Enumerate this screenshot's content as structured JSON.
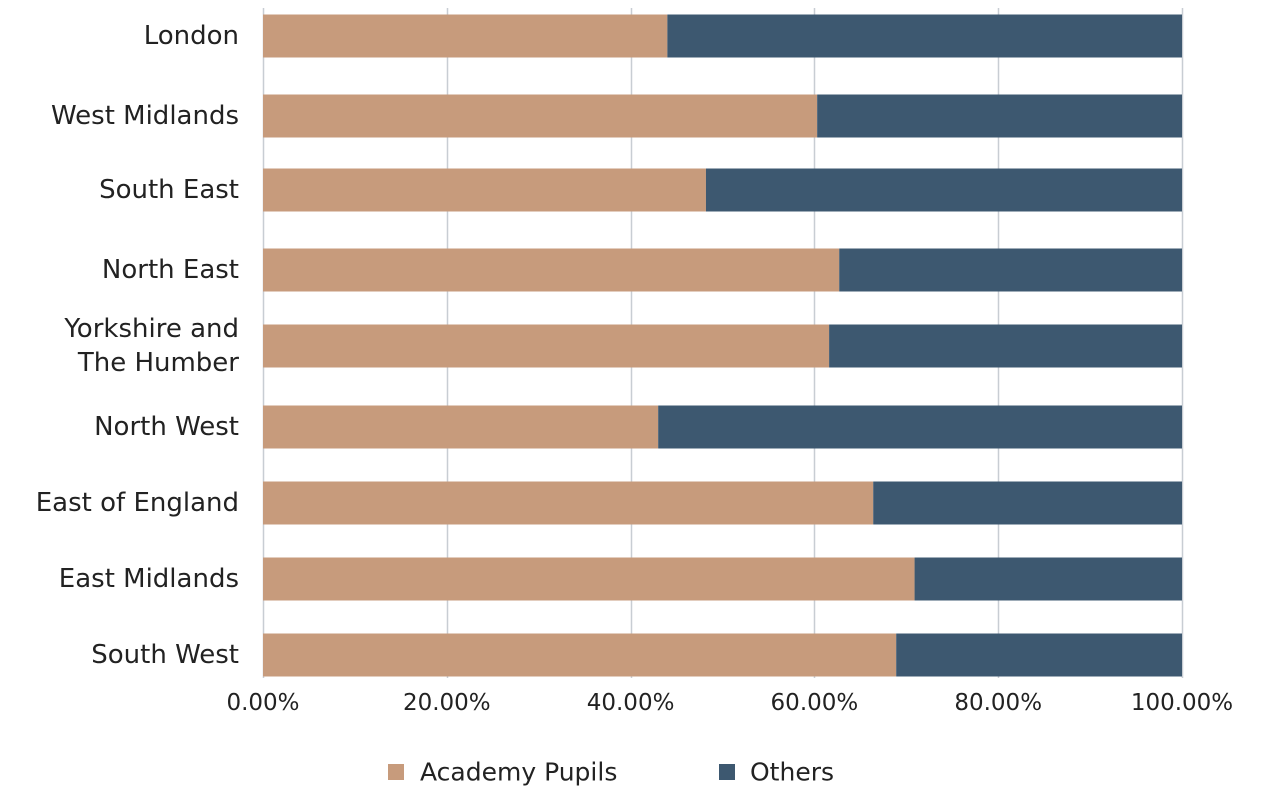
{
  "chart_data": {
    "type": "bar",
    "orientation": "horizontal",
    "stacked": true,
    "categories": [
      [
        "London"
      ],
      [
        "West Midlands"
      ],
      [
        "South East"
      ],
      [
        "North East"
      ],
      [
        "Yorkshire and",
        "The Humber"
      ],
      [
        "North West"
      ],
      [
        "East of England"
      ],
      [
        "East Midlands"
      ],
      [
        "South West"
      ]
    ],
    "series": [
      {
        "name": "Academy Pupils",
        "color": "#c79b7c",
        "values": [
          0.44,
          0.603,
          0.482,
          0.627,
          0.616,
          0.43,
          0.664,
          0.709,
          0.689
        ]
      },
      {
        "name": "Others",
        "color": "#3d5870",
        "values": [
          0.56,
          0.397,
          0.518,
          0.373,
          0.384,
          0.57,
          0.336,
          0.291,
          0.311
        ]
      }
    ],
    "xlim": [
      0,
      1
    ],
    "xticks": [
      0,
      0.2,
      0.4,
      0.6,
      0.8,
      1.0
    ],
    "xtick_labels": [
      "0.00%",
      "20.00%",
      "40.00%",
      "60.00%",
      "80.00%",
      "100.00%"
    ],
    "grid": "vertical",
    "grid_color": "#c8cdd3",
    "legend_position": "bottom",
    "title": "",
    "xlabel": "",
    "ylabel": ""
  }
}
